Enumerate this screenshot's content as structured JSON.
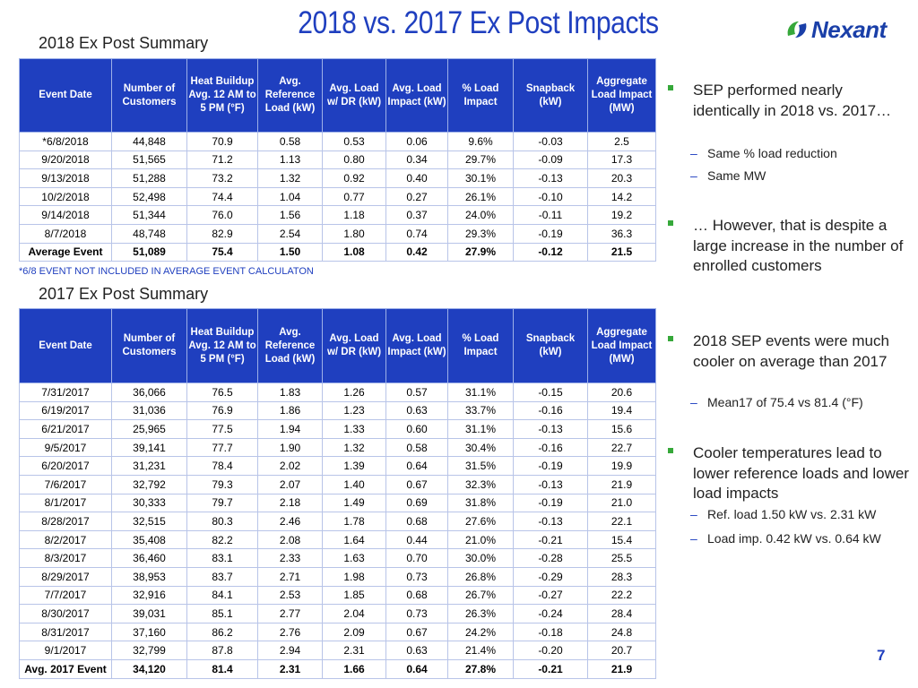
{
  "title": "2018 vs. 2017 Ex Post Impacts",
  "logo_text": "Nexant",
  "colors": {
    "title_blue": "#1f3fbf",
    "header_bg": "#1f3fbf",
    "bullet_green": "#36a83a"
  },
  "headers": [
    "Event Date",
    "Number of Customers",
    "Heat Buildup Avg. 12 AM to 5 PM (°F)",
    "Avg. Reference Load (kW)",
    "Avg. Load w/ DR (kW)",
    "Avg. Load Impact (kW)",
    "% Load Impact",
    "Snapback (kW)",
    "Aggregate Load Impact (MW)"
  ],
  "summary_2018": {
    "title": "2018 Ex Post Summary",
    "rows": [
      [
        "*6/8/2018",
        "44,848",
        "70.9",
        "0.58",
        "0.53",
        "0.06",
        "9.6%",
        "-0.03",
        "2.5"
      ],
      [
        "9/20/2018",
        "51,565",
        "71.2",
        "1.13",
        "0.80",
        "0.34",
        "29.7%",
        "-0.09",
        "17.3"
      ],
      [
        "9/13/2018",
        "51,288",
        "73.2",
        "1.32",
        "0.92",
        "0.40",
        "30.1%",
        "-0.13",
        "20.3"
      ],
      [
        "10/2/2018",
        "52,498",
        "74.4",
        "1.04",
        "0.77",
        "0.27",
        "26.1%",
        "-0.10",
        "14.2"
      ],
      [
        "9/14/2018",
        "51,344",
        "76.0",
        "1.56",
        "1.18",
        "0.37",
        "24.0%",
        "-0.11",
        "19.2"
      ],
      [
        "8/7/2018",
        "48,748",
        "82.9",
        "2.54",
        "1.80",
        "0.74",
        "29.3%",
        "-0.19",
        "36.3"
      ]
    ],
    "avg_row": [
      "Average Event",
      "51,089",
      "75.4",
      "1.50",
      "1.08",
      "0.42",
      "27.9%",
      "-0.12",
      "21.5"
    ],
    "footnote": "*6/8 EVENT NOT INCLUDED IN AVERAGE EVENT CALCULATON"
  },
  "summary_2017": {
    "title": "2017 Ex Post Summary",
    "rows": [
      [
        "7/31/2017",
        "36,066",
        "76.5",
        "1.83",
        "1.26",
        "0.57",
        "31.1%",
        "-0.15",
        "20.6"
      ],
      [
        "6/19/2017",
        "31,036",
        "76.9",
        "1.86",
        "1.23",
        "0.63",
        "33.7%",
        "-0.16",
        "19.4"
      ],
      [
        "6/21/2017",
        "25,965",
        "77.5",
        "1.94",
        "1.33",
        "0.60",
        "31.1%",
        "-0.13",
        "15.6"
      ],
      [
        "9/5/2017",
        "39,141",
        "77.7",
        "1.90",
        "1.32",
        "0.58",
        "30.4%",
        "-0.16",
        "22.7"
      ],
      [
        "6/20/2017",
        "31,231",
        "78.4",
        "2.02",
        "1.39",
        "0.64",
        "31.5%",
        "-0.19",
        "19.9"
      ],
      [
        "7/6/2017",
        "32,792",
        "79.3",
        "2.07",
        "1.40",
        "0.67",
        "32.3%",
        "-0.13",
        "21.9"
      ],
      [
        "8/1/2017",
        "30,333",
        "79.7",
        "2.18",
        "1.49",
        "0.69",
        "31.8%",
        "-0.19",
        "21.0"
      ],
      [
        "8/28/2017",
        "32,515",
        "80.3",
        "2.46",
        "1.78",
        "0.68",
        "27.6%",
        "-0.13",
        "22.1"
      ],
      [
        "8/2/2017",
        "35,408",
        "82.2",
        "2.08",
        "1.64",
        "0.44",
        "21.0%",
        "-0.21",
        "15.4"
      ],
      [
        "8/3/2017",
        "36,460",
        "83.1",
        "2.33",
        "1.63",
        "0.70",
        "30.0%",
        "-0.28",
        "25.5"
      ],
      [
        "8/29/2017",
        "38,953",
        "83.7",
        "2.71",
        "1.98",
        "0.73",
        "26.8%",
        "-0.29",
        "28.3"
      ],
      [
        "7/7/2017",
        "32,916",
        "84.1",
        "2.53",
        "1.85",
        "0.68",
        "26.7%",
        "-0.27",
        "22.2"
      ],
      [
        "8/30/2017",
        "39,031",
        "85.1",
        "2.77",
        "2.04",
        "0.73",
        "26.3%",
        "-0.24",
        "28.4"
      ],
      [
        "8/31/2017",
        "37,160",
        "86.2",
        "2.76",
        "2.09",
        "0.67",
        "24.2%",
        "-0.18",
        "24.8"
      ],
      [
        "9/1/2017",
        "32,799",
        "87.8",
        "2.94",
        "2.31",
        "0.63",
        "21.4%",
        "-0.20",
        "20.7"
      ]
    ],
    "avg_row": [
      "Avg. 2017 Event",
      "34,120",
      "81.4",
      "2.31",
      "1.66",
      "0.64",
      "27.8%",
      "-0.21",
      "21.9"
    ]
  },
  "bullets": [
    {
      "text": "SEP performed nearly identically in 2018 vs. 2017…",
      "subs": [
        "Same % load reduction",
        "Same MW"
      ]
    },
    {
      "text": "… However, that is despite a large increase in the number of enrolled customers",
      "subs": []
    },
    {
      "text": "2018 SEP events were much cooler on average than 2017",
      "subs": [
        "Mean17 of 75.4 vs 81.4 (°F)"
      ]
    },
    {
      "text": "Cooler temperatures lead to lower reference loads and lower load impacts",
      "subs": [
        "Ref. load 1.50 kW vs. 2.31 kW",
        "Load imp. 0.42 kW vs. 0.64 kW"
      ]
    }
  ],
  "page_number": "7"
}
